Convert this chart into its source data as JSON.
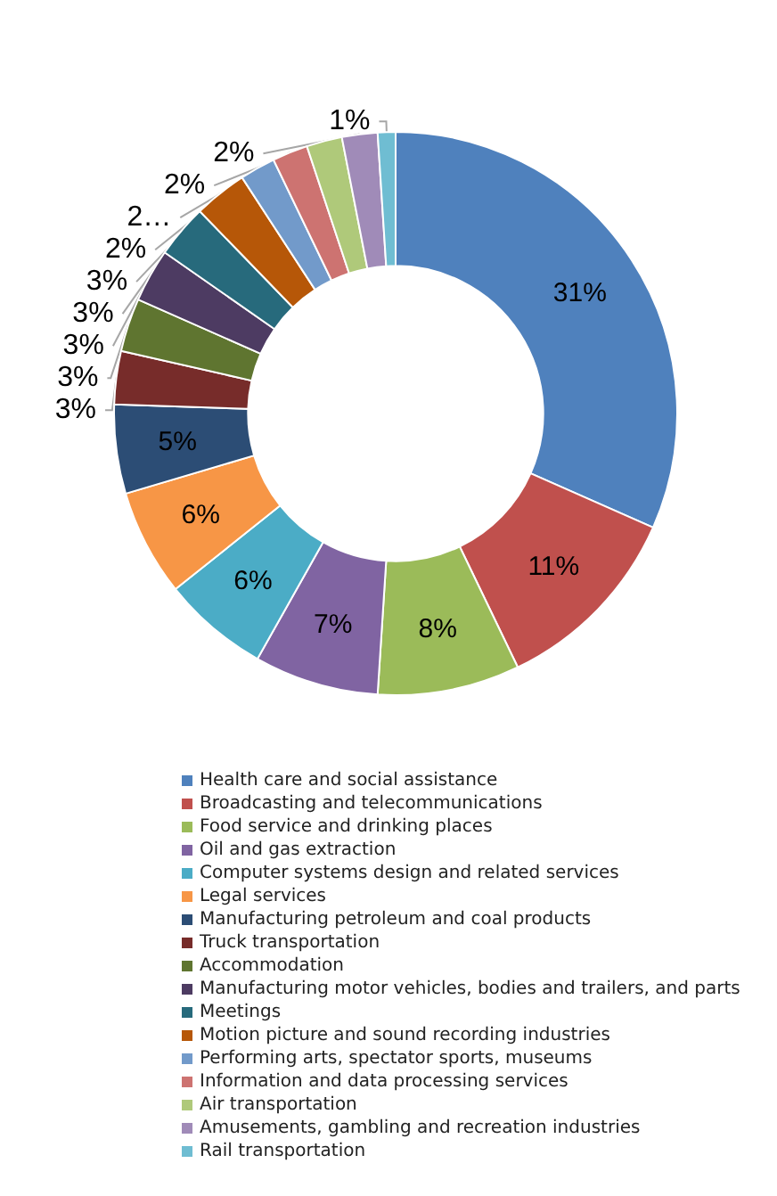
{
  "chart_data": {
    "type": "donut",
    "categories": [
      "Health care and social assistance",
      "Broadcasting and telecommunications",
      "Food service and drinking places",
      "Oil and gas extraction",
      "Computer systems design and related services",
      "Legal services",
      "Manufacturing petroleum and coal products",
      "Truck transportation",
      "Accommodation",
      "Manufacturing motor vehicles, bodies and trailers, and parts",
      "Meetings",
      "Motion picture and sound recording industries",
      "Performing arts, spectator sports, museums",
      "Information and data processing services",
      "Air transportation",
      "Amusements, gambling and recreation industries",
      "Rail transportation"
    ],
    "values": [
      31,
      11,
      8,
      7,
      6,
      6,
      5,
      3,
      3,
      3,
      3,
      3,
      2,
      2,
      2,
      2,
      1
    ],
    "value_labels": [
      "31%",
      "11%",
      "8%",
      "7%",
      "6%",
      "6%",
      "5%",
      "3%",
      "3%",
      "3%",
      "3%",
      "3%",
      "2%",
      "2…",
      "2%",
      "2%",
      "1%"
    ],
    "colors": [
      "#4f81bd",
      "#c0504d",
      "#9bbb59",
      "#8064a2",
      "#4bacc6",
      "#f79646",
      "#2c4d75",
      "#772c2a",
      "#5f7530",
      "#4d3b62",
      "#276a7c",
      "#b65708",
      "#729aca",
      "#cd7371",
      "#afc97a",
      "#a08bb8",
      "#6fbdd2"
    ],
    "legend": "bottom"
  }
}
